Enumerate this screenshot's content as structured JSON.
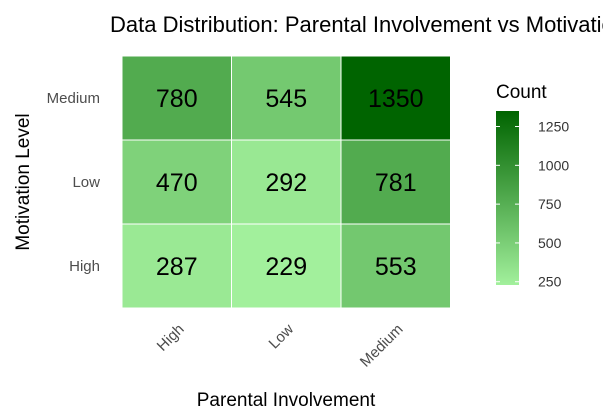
{
  "chart_data": {
    "type": "heatmap",
    "title": "Data Distribution: Parental Involvement vs Motivation Level",
    "xlabel": "Parental Involvement",
    "ylabel": "Motivation Level",
    "x_categories": [
      "High",
      "Low",
      "Medium"
    ],
    "y_categories": [
      "Medium",
      "Low",
      "High"
    ],
    "values": [
      [
        780,
        545,
        1350
      ],
      [
        470,
        292,
        781
      ],
      [
        287,
        229,
        553
      ]
    ],
    "legend": {
      "title": "Count",
      "ticks": [
        250,
        500,
        750,
        1000,
        1250
      ],
      "range": [
        229,
        1350
      ],
      "color_low": "#a2f09c",
      "color_high": "#006400"
    }
  }
}
